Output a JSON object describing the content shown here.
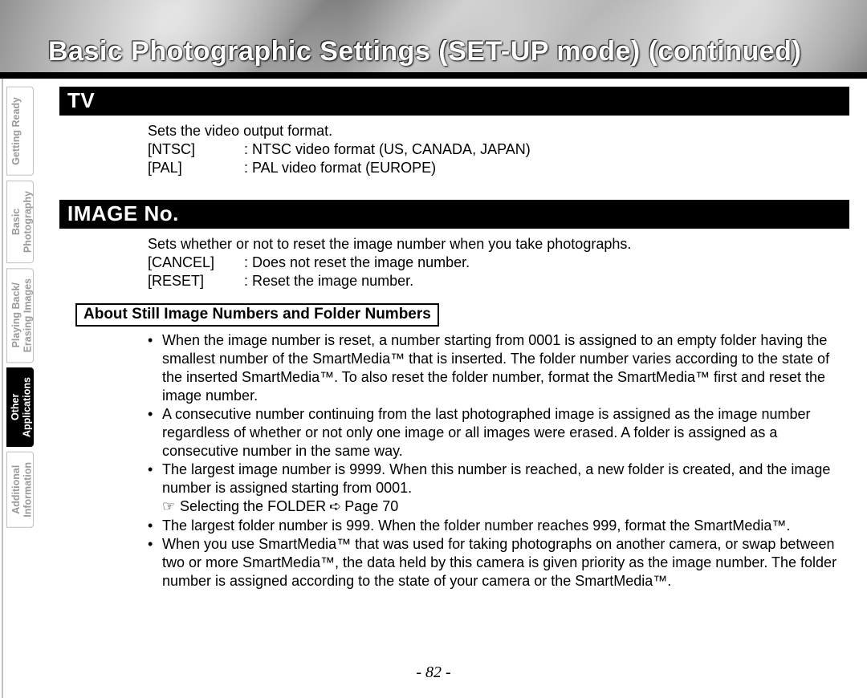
{
  "title": "Basic Photographic Settings (SET-UP mode) (continued)",
  "tabs": [
    {
      "label": "Getting Ready",
      "active": false
    },
    {
      "label": "Basic\nPhotography",
      "active": false
    },
    {
      "label": "Playing Back/\nErasing Images",
      "active": false
    },
    {
      "label": "Other\nApplications",
      "active": true
    },
    {
      "label": "Additional\nInformation",
      "active": false
    }
  ],
  "sections": {
    "tv": {
      "heading": "TV",
      "intro": "Sets the video output format.",
      "options": [
        {
          "key": "[NTSC]",
          "desc": ": NTSC video format (US, CANADA, JAPAN)"
        },
        {
          "key": "[PAL]",
          "desc": ": PAL video format (EUROPE)"
        }
      ]
    },
    "image_no": {
      "heading": "IMAGE No.",
      "intro": "Sets whether or not to reset the image number when you take photographs.",
      "options": [
        {
          "key": "[CANCEL]",
          "desc": ": Does not reset the image number."
        },
        {
          "key": "[RESET]",
          "desc": ": Reset the image number."
        }
      ],
      "sub_heading": "About Still Image Numbers and Folder Numbers",
      "bullets": [
        "When the image number is reset, a number starting from 0001 is assigned to an empty folder having the smallest number of the SmartMedia™ that is inserted.\nThe folder number varies according to the state of the inserted SmartMedia™. To also reset the folder number, format the SmartMedia™ first and reset the image number.",
        "A consecutive number continuing from the last photographed image is assigned as the image number regardless of whether or not only one image or all images were erased. A folder is assigned as a consecutive number in the same way.",
        "The largest image number is 9999. When this number is reached, a new folder is created, and the image number is assigned starting from 0001."
      ],
      "ref": {
        "hand": "☞",
        "text_before": "Selecting the FOLDER",
        "arrow": "➪",
        "text_after": "Page 70"
      },
      "bullets_after": [
        "The largest folder number is 999. When the folder number reaches 999, format the SmartMedia™.",
        "When you use SmartMedia™ that was used for taking photographs on another camera, or swap between two or more SmartMedia™, the data held by this camera is given priority as the image number. The folder number is assigned according to the state of your camera or the SmartMedia™."
      ]
    }
  },
  "page_number": "- 82 -"
}
